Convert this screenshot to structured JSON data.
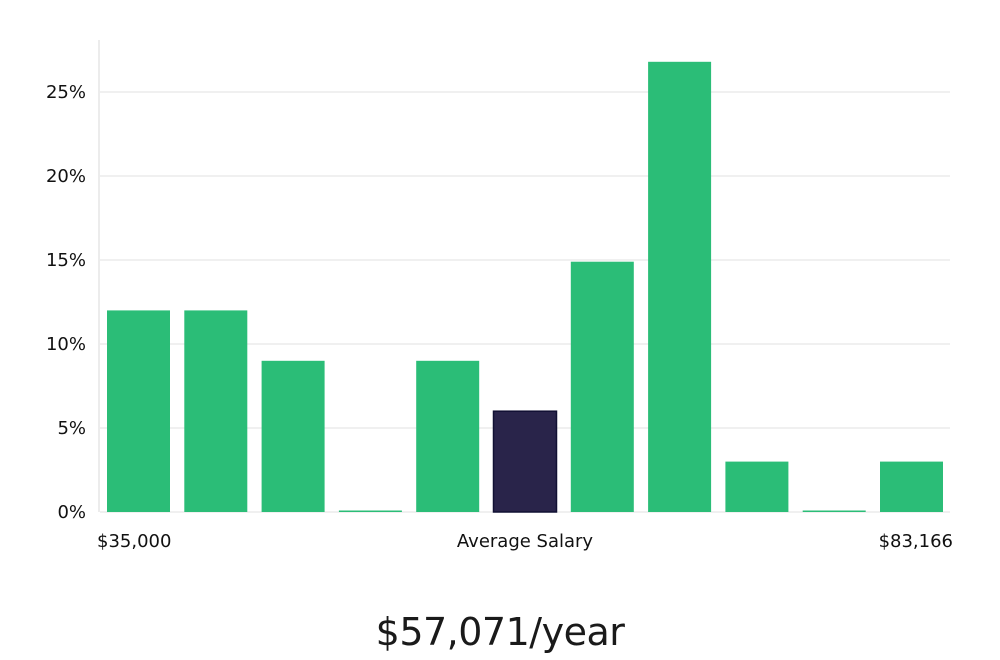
{
  "chart_data": {
    "type": "bar",
    "title": "",
    "xlabel": "Average Salary",
    "ylabel": "",
    "x_min_label": "$35,000",
    "x_max_label": "$83,166",
    "ylim": [
      0,
      28
    ],
    "yticks": [
      0,
      5,
      10,
      15,
      20,
      25
    ],
    "ytick_suffix": "%",
    "grid": true,
    "bins": 11,
    "values": [
      12,
      12,
      9,
      0,
      9,
      6,
      14.9,
      26.8,
      3,
      0,
      3
    ],
    "highlight_index": 5,
    "colors": {
      "bar": "#2bbd77",
      "highlight": "#29244a",
      "grid": "#e2e2e2",
      "axis": "#d8d8d8"
    }
  },
  "summary": {
    "average_salary": "$57,071/year"
  }
}
